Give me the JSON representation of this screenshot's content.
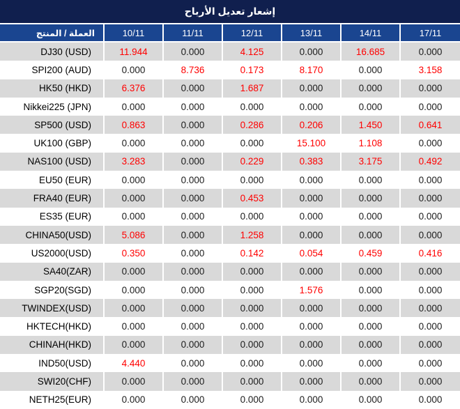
{
  "title": "إشعار تعديل الأرباح",
  "table": {
    "product_header": "العملة / المنتج",
    "date_headers": [
      "10/11",
      "11/11",
      "12/11",
      "13/11",
      "14/11",
      "17/11"
    ],
    "zero_value": "0.000",
    "rows": [
      {
        "product": "DJ30 (USD)",
        "values": [
          "11.944",
          "0.000",
          "4.125",
          "0.000",
          "16.685",
          "0.000"
        ]
      },
      {
        "product": "SPI200 (AUD)",
        "values": [
          "0.000",
          "8.736",
          "0.173",
          "8.170",
          "0.000",
          "3.158"
        ]
      },
      {
        "product": "HK50 (HKD)",
        "values": [
          "6.376",
          "0.000",
          "1.687",
          "0.000",
          "0.000",
          "0.000"
        ]
      },
      {
        "product": "Nikkei225 (JPN)",
        "values": [
          "0.000",
          "0.000",
          "0.000",
          "0.000",
          "0.000",
          "0.000"
        ]
      },
      {
        "product": "SP500 (USD)",
        "values": [
          "0.863",
          "0.000",
          "0.286",
          "0.206",
          "1.450",
          "0.641"
        ]
      },
      {
        "product": "UK100 (GBP)",
        "values": [
          "0.000",
          "0.000",
          "0.000",
          "15.100",
          "1.108",
          "0.000"
        ]
      },
      {
        "product": "NAS100 (USD)",
        "values": [
          "3.283",
          "0.000",
          "0.229",
          "0.383",
          "3.175",
          "0.492"
        ]
      },
      {
        "product": "EU50 (EUR)",
        "values": [
          "0.000",
          "0.000",
          "0.000",
          "0.000",
          "0.000",
          "0.000"
        ]
      },
      {
        "product": "FRA40 (EUR)",
        "values": [
          "0.000",
          "0.000",
          "0.453",
          "0.000",
          "0.000",
          "0.000"
        ]
      },
      {
        "product": "ES35 (EUR)",
        "values": [
          "0.000",
          "0.000",
          "0.000",
          "0.000",
          "0.000",
          "0.000"
        ]
      },
      {
        "product": "CHINA50(USD)",
        "values": [
          "5.086",
          "0.000",
          "1.258",
          "0.000",
          "0.000",
          "0.000"
        ]
      },
      {
        "product": "US2000(USD)",
        "values": [
          "0.350",
          "0.000",
          "0.142",
          "0.054",
          "0.459",
          "0.416"
        ]
      },
      {
        "product": "SA40(ZAR)",
        "values": [
          "0.000",
          "0.000",
          "0.000",
          "0.000",
          "0.000",
          "0.000"
        ]
      },
      {
        "product": "SGP20(SGD)",
        "values": [
          "0.000",
          "0.000",
          "0.000",
          "1.576",
          "0.000",
          "0.000"
        ]
      },
      {
        "product": "TWINDEX(USD)",
        "values": [
          "0.000",
          "0.000",
          "0.000",
          "0.000",
          "0.000",
          "0.000"
        ]
      },
      {
        "product": "HKTECH(HKD)",
        "values": [
          "0.000",
          "0.000",
          "0.000",
          "0.000",
          "0.000",
          "0.000"
        ]
      },
      {
        "product": "CHINAH(HKD)",
        "values": [
          "0.000",
          "0.000",
          "0.000",
          "0.000",
          "0.000",
          "0.000"
        ]
      },
      {
        "product": "IND50(USD)",
        "values": [
          "4.440",
          "0.000",
          "0.000",
          "0.000",
          "0.000",
          "0.000"
        ]
      },
      {
        "product": "SWI20(CHF)",
        "values": [
          "0.000",
          "0.000",
          "0.000",
          "0.000",
          "0.000",
          "0.000"
        ]
      },
      {
        "product": "NETH25(EUR)",
        "values": [
          "0.000",
          "0.000",
          "0.000",
          "0.000",
          "0.000",
          "0.000"
        ]
      }
    ]
  },
  "colors": {
    "title_bg": "#101f4e",
    "header_bg": "#1a4590",
    "row_bg": "#ffffff",
    "row_alt_bg": "#d9d9d9",
    "value_default": "#1c1c1c",
    "value_highlight": "#ff0000",
    "header_text": "#ffffff"
  }
}
